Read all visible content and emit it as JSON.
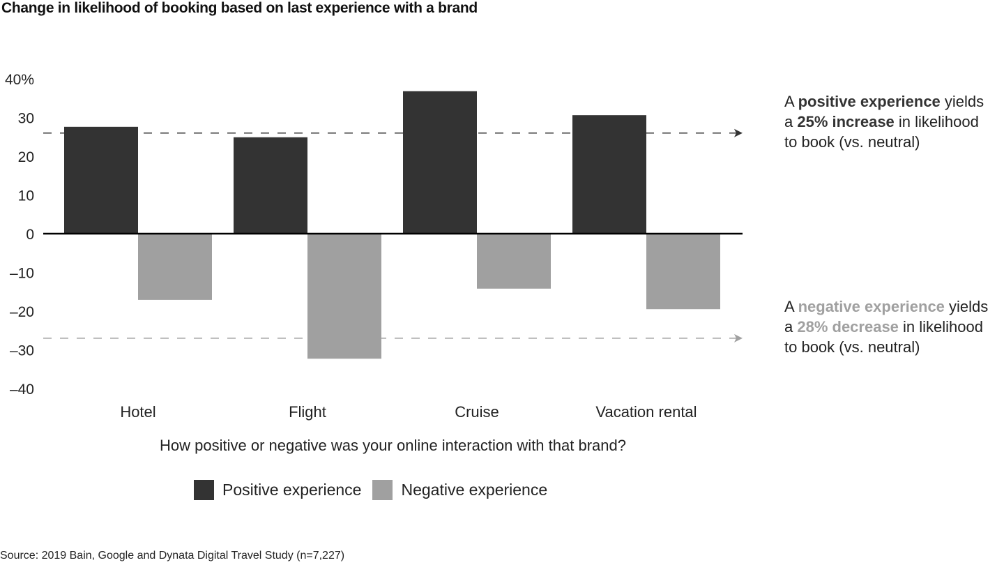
{
  "title": "Change in likelihood of booking based on last experience with a brand",
  "source": "Source: 2019 Bain, Google and Dynata Digital Travel Study (n=7,227)",
  "colors": {
    "positive": "#333333",
    "negative": "#a0a0a0",
    "axis": "#000000"
  },
  "notes": {
    "positive": {
      "pre": "A ",
      "bold1": "positive experience",
      "mid": " yields a ",
      "bold2": "25% increase",
      "post": " in likelihood to book (vs. neutral)"
    },
    "negative": {
      "pre": "A ",
      "bold1": "negative experience",
      "mid": " yields a ",
      "bold2": "28% decrease",
      "post": " in likelihood to book (vs. neutral)"
    }
  },
  "chart_data": {
    "type": "bar",
    "title": "Change in likelihood of booking based on last experience with a brand",
    "xlabel": "How positive or negative was your online interaction with that brand?",
    "ylabel": "",
    "ylim": [
      -40,
      40
    ],
    "yticks": [
      40,
      30,
      20,
      10,
      0,
      -10,
      -20,
      -30,
      -40
    ],
    "ytick_labels": [
      "40%",
      "30",
      "20",
      "10",
      "0",
      "–10",
      "–20",
      "–30",
      "–40"
    ],
    "categories": [
      "Hotel",
      "Flight",
      "Cruise",
      "Vacation rental"
    ],
    "series": [
      {
        "name": "Positive experience",
        "values": [
          27.6,
          24.9,
          36.8,
          30.6
        ]
      },
      {
        "name": "Negative experience",
        "values": [
          -17.1,
          -32.3,
          -14.2,
          -19.5
        ]
      }
    ],
    "reference_lines": [
      {
        "name": "positive-average",
        "value": 26,
        "style": "dashed-arrow",
        "color": "#333333"
      },
      {
        "name": "negative-average",
        "value": -27,
        "style": "dashed-arrow",
        "color": "#a0a0a0"
      }
    ],
    "grid": false,
    "legend": "bottom"
  }
}
